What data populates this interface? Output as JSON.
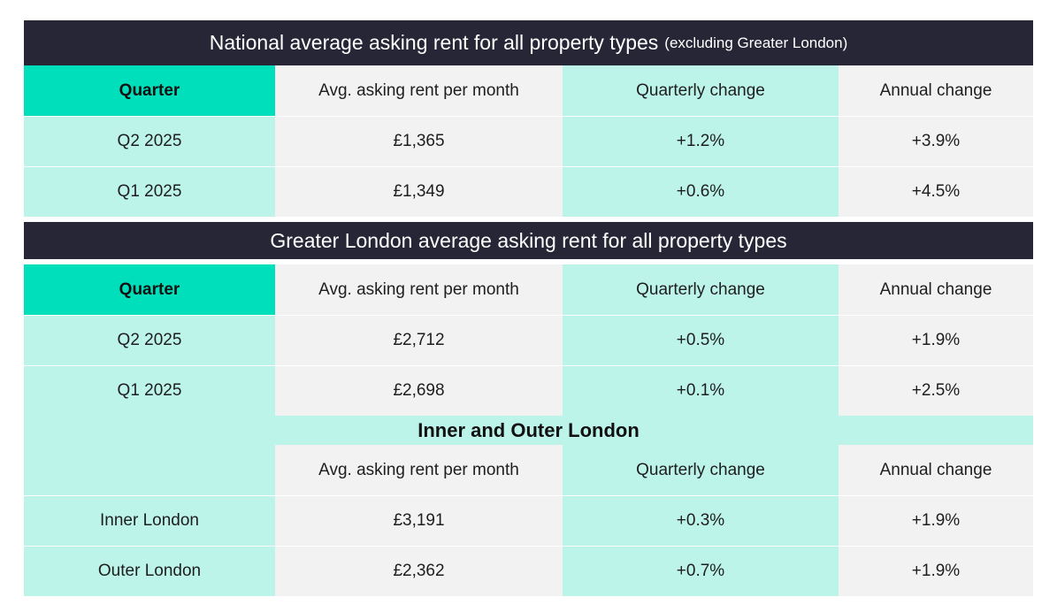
{
  "colors": {
    "banner_bg": "#262636",
    "header_quarter_bg": "#00dfbb",
    "mint_col": "#bdf4ea",
    "grey_col": "#f2f2f2"
  },
  "national": {
    "title": "National average asking rent for all property types",
    "title_note": "(excluding Greater London)",
    "headers": [
      "Quarter",
      "Avg. asking rent per month",
      "Quarterly change",
      "Annual change"
    ],
    "rows": [
      [
        "Q2 2025",
        "£1,365",
        "+1.2%",
        "+3.9%"
      ],
      [
        "Q1 2025",
        "£1,349",
        "+0.6%",
        "+4.5%"
      ]
    ]
  },
  "london": {
    "title": "Greater London average asking rent for all property types",
    "headers": [
      "Quarter",
      "Avg. asking rent per month",
      "Quarterly change",
      "Annual change"
    ],
    "rows": [
      [
        "Q2 2025",
        "£2,712",
        "+0.5%",
        "+1.9%"
      ],
      [
        "Q1 2025",
        "£2,698",
        "+0.1%",
        "+2.5%"
      ]
    ]
  },
  "inner_outer": {
    "title": "Inner and Outer London",
    "headers": [
      "",
      "Avg. asking rent per month",
      "Quarterly change",
      "Annual change"
    ],
    "rows": [
      [
        "Inner London",
        "£3,191",
        "+0.3%",
        "+1.9%"
      ],
      [
        "Outer London",
        "£2,362",
        "+0.7%",
        "+1.9%"
      ]
    ]
  }
}
